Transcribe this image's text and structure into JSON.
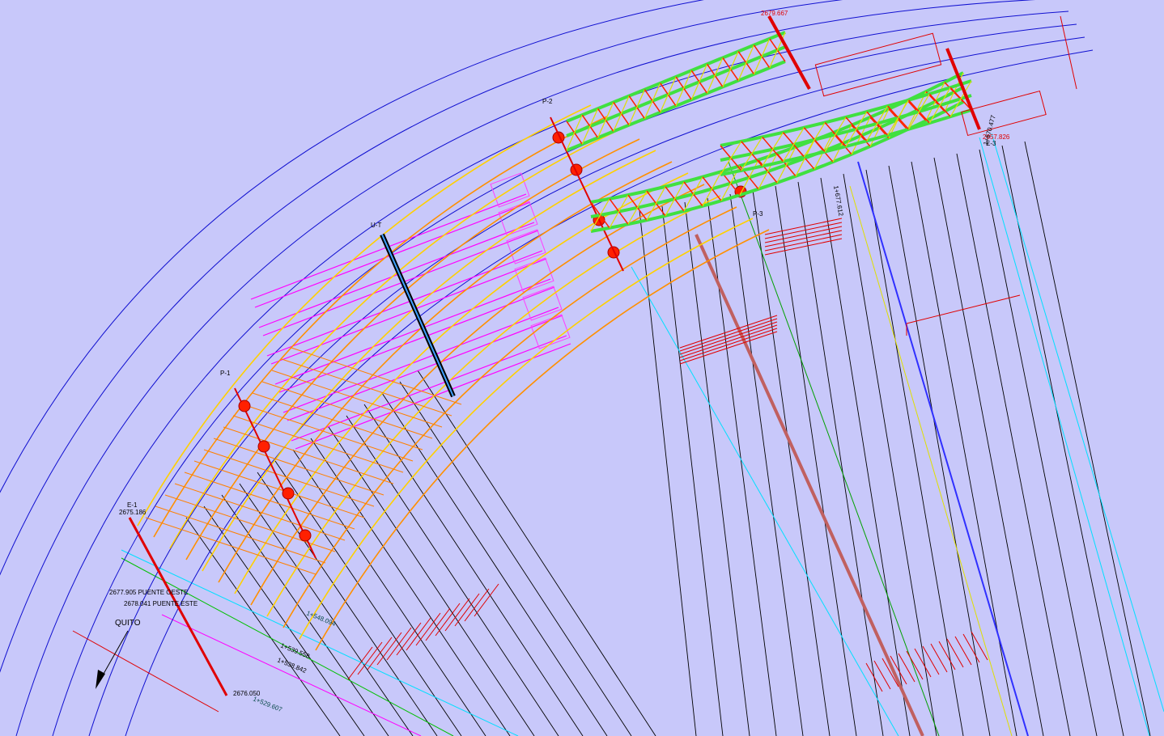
{
  "labels": {
    "p2": "P-2",
    "ut": "U-T",
    "p1": "P-1",
    "e1": "E-1",
    "e1_elev": "2675.186",
    "puente_oeste": "2677.905 PUENTE OESTE",
    "puente_este": "2678.041 PUENTE ESTE",
    "quito": "QUITO",
    "e3": "E-3",
    "e3_elev": "2657.826",
    "e2_elev": "2679.667",
    "p3": "P-3",
    "sta_1": "1+548.094",
    "sta_2": "1+539.558",
    "sta_3": "1+538.842",
    "sta_4": "1+677.612",
    "sta_5": "1+670.477",
    "sta_6": "1+529.607",
    "bottom_elev": "2676.050"
  }
}
